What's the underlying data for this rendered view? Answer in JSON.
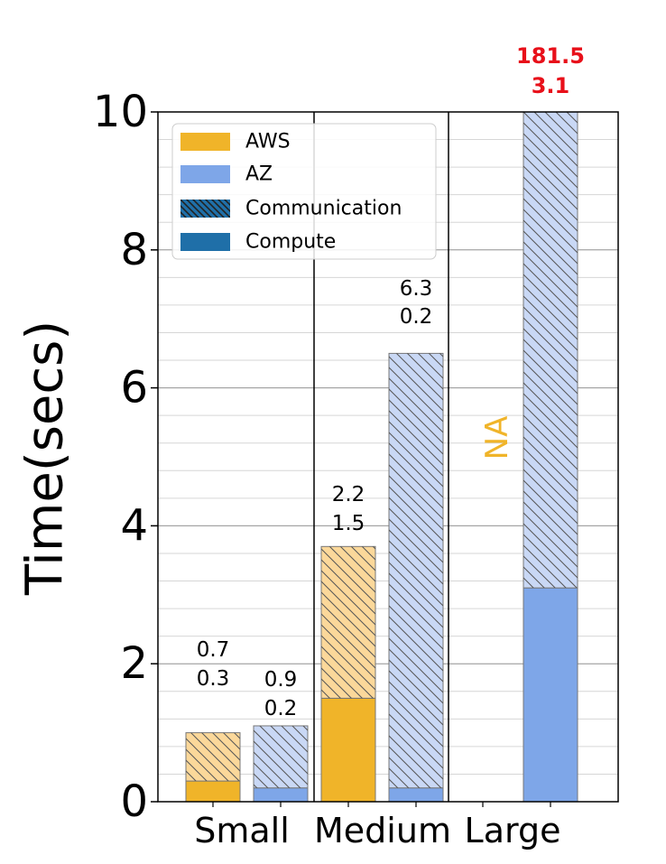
{
  "chart_data": {
    "type": "bar",
    "stacked": true,
    "ylabel": "Time(secs)",
    "ylim": [
      0,
      10
    ],
    "yticks": [
      "0",
      "2",
      "4",
      "6",
      "8",
      "10"
    ],
    "categories": [
      "Small",
      "Medium",
      "Large"
    ],
    "grid": "horizontal",
    "legend_position": "top-left",
    "legend": [
      {
        "label": "AWS",
        "style": "aws-solid"
      },
      {
        "label": "AZ",
        "style": "az-solid"
      },
      {
        "label": "Communication",
        "style": "hatch"
      },
      {
        "label": "Compute",
        "style": "dark-solid"
      }
    ],
    "colors": {
      "aws": "#f0b429",
      "aws_light": "#fbd89a",
      "az": "#7ea6e8",
      "az_light": "#c9d8f5",
      "legend_dark": "#1f6fa8",
      "hatch": "#555555",
      "clipped_label": "#e8101a",
      "na_label": "#f0b429"
    },
    "series": [
      {
        "name": "AWS",
        "compute": [
          0.3,
          1.5,
          null
        ],
        "communication": [
          0.7,
          2.2,
          null
        ]
      },
      {
        "name": "AZ",
        "compute": [
          0.2,
          0.2,
          3.1
        ],
        "communication": [
          0.9,
          6.3,
          181.5
        ]
      }
    ],
    "annotations": [
      {
        "category": "Small",
        "series": "AWS",
        "communication": "0.7",
        "compute": "0.3"
      },
      {
        "category": "Small",
        "series": "AZ",
        "communication": "0.9",
        "compute": "0.2"
      },
      {
        "category": "Medium",
        "series": "AWS",
        "communication": "2.2",
        "compute": "1.5"
      },
      {
        "category": "Medium",
        "series": "AZ",
        "communication": "6.3",
        "compute": "0.2"
      },
      {
        "category": "Large",
        "series": "AZ",
        "communication": "181.5",
        "compute": "3.1",
        "clipped": true
      }
    ],
    "na_label": "NA"
  }
}
